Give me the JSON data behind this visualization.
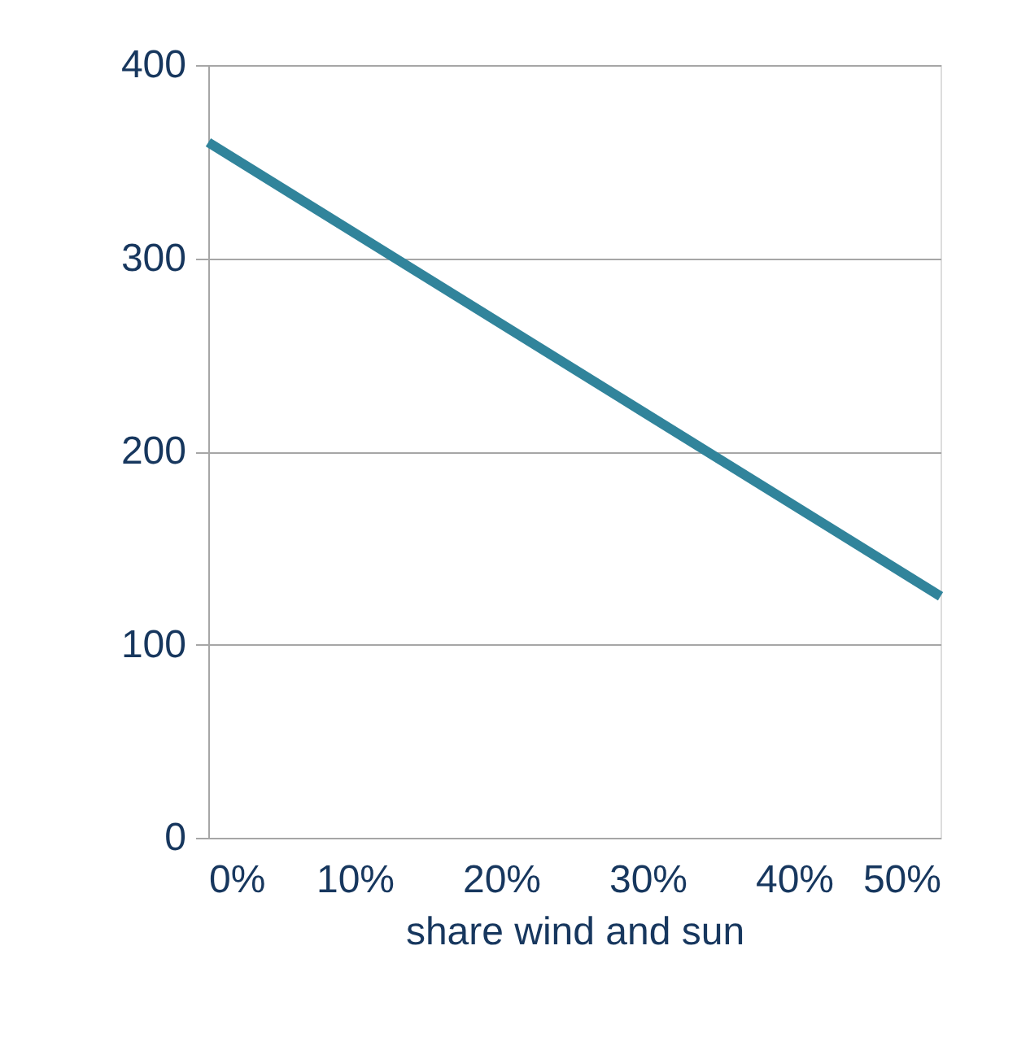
{
  "chart_data": {
    "type": "line",
    "xlabel": "share wind and sun",
    "x": [
      0,
      50
    ],
    "series": [
      {
        "color": "#31849b",
        "values": [
          360,
          125
        ]
      }
    ],
    "xlim": [
      0,
      50
    ],
    "xticks": [
      {
        "value": 0,
        "label": "0%"
      },
      {
        "value": 10,
        "label": "10%"
      },
      {
        "value": 20,
        "label": "20%"
      },
      {
        "value": 30,
        "label": "30%"
      },
      {
        "value": 40,
        "label": "40%"
      },
      {
        "value": 50,
        "label": "50%"
      }
    ],
    "ylim": [
      0,
      400
    ],
    "yticks": [
      0,
      100,
      200,
      300,
      400
    ],
    "grid": "y",
    "legend": false,
    "marker": "none",
    "line_style": "solid"
  }
}
